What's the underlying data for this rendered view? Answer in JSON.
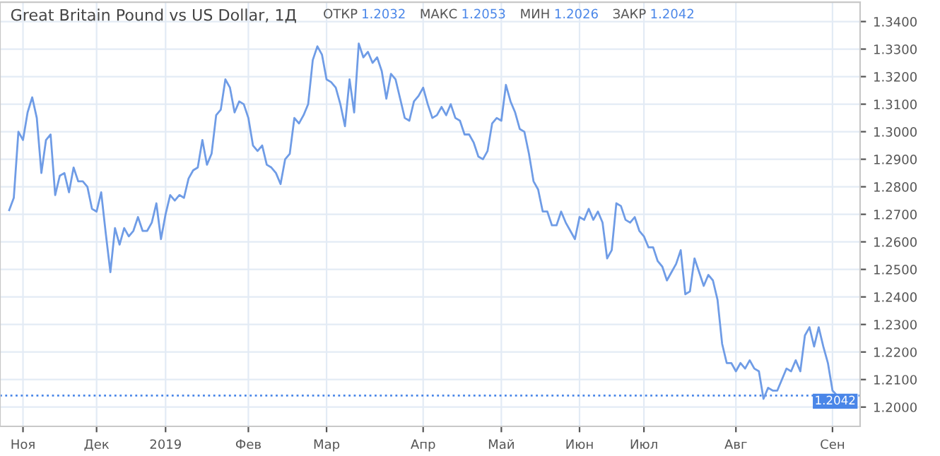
{
  "chart_data": {
    "type": "line",
    "title": "Great Britain Pound vs US Dollar, 1Д",
    "annotations": [
      "ОТКР 1.2032",
      "МАКС 1.2053",
      "МИН 1.2026",
      "ЗАКР 1.2042"
    ],
    "categories": [
      null,
      null,
      null,
      "Ноя",
      null,
      null,
      null,
      null,
      null,
      null,
      null,
      null,
      null,
      null,
      null,
      null,
      null,
      null,
      null,
      "Дек",
      null,
      null,
      null,
      null,
      null,
      null,
      null,
      null,
      null,
      null,
      null,
      null,
      null,
      null,
      "2019",
      null,
      null,
      null,
      null,
      null,
      null,
      null,
      null,
      null,
      null,
      null,
      null,
      null,
      null,
      null,
      null,
      null,
      "Фев",
      null,
      null,
      null,
      null,
      null,
      null,
      null,
      null,
      null,
      null,
      null,
      null,
      null,
      null,
      null,
      null,
      "Мар",
      null,
      null,
      null,
      null,
      null,
      null,
      null,
      null,
      null,
      null,
      null,
      null,
      null,
      null,
      null,
      null,
      null,
      null,
      null,
      null,
      "Апр",
      null,
      null,
      null,
      null,
      null,
      null,
      null,
      null,
      null,
      null,
      null,
      null,
      null,
      null,
      null,
      null,
      "Май",
      null,
      null,
      null,
      null,
      null,
      null,
      null,
      null,
      null,
      null,
      null,
      null,
      null,
      null,
      null,
      null,
      "Июн",
      null,
      null,
      null,
      null,
      null,
      null,
      null,
      null,
      null,
      null,
      null,
      null,
      null,
      "Июл",
      null,
      null,
      null,
      null,
      null,
      null,
      null,
      null,
      null,
      null,
      null,
      null,
      null,
      null,
      null,
      null,
      null,
      null,
      null,
      "Авг",
      null,
      null,
      null,
      null,
      null,
      null,
      null,
      null,
      null,
      null,
      null,
      null,
      null,
      null,
      null,
      null,
      null,
      null,
      null,
      null,
      "Сен",
      null
    ],
    "series": [
      {
        "color": "#6f9ce6",
        "values": [
          1.2715,
          1.276,
          1.3,
          1.297,
          1.307,
          1.3125,
          1.305,
          1.285,
          1.297,
          1.299,
          1.277,
          1.284,
          1.285,
          1.278,
          1.287,
          1.282,
          1.282,
          1.28,
          1.272,
          1.271,
          1.278,
          1.263,
          1.249,
          1.265,
          1.259,
          1.265,
          1.262,
          1.264,
          1.269,
          1.264,
          1.264,
          1.267,
          1.274,
          1.261,
          1.27,
          1.277,
          1.275,
          1.277,
          1.276,
          1.283,
          1.286,
          1.287,
          1.297,
          1.288,
          1.292,
          1.306,
          1.308,
          1.319,
          1.316,
          1.307,
          1.311,
          1.31,
          1.305,
          1.295,
          1.293,
          1.295,
          1.288,
          1.287,
          1.285,
          1.281,
          1.29,
          1.292,
          1.305,
          1.303,
          1.306,
          1.31,
          1.326,
          1.331,
          1.328,
          1.319,
          1.318,
          1.316,
          1.31,
          1.302,
          1.319,
          1.307,
          1.332,
          1.327,
          1.329,
          1.325,
          1.327,
          1.322,
          1.312,
          1.321,
          1.319,
          1.312,
          1.305,
          1.304,
          1.311,
          1.313,
          1.316,
          1.31,
          1.305,
          1.306,
          1.309,
          1.306,
          1.31,
          1.305,
          1.304,
          1.299,
          1.299,
          1.296,
          1.291,
          1.29,
          1.293,
          1.303,
          1.305,
          1.304,
          1.317,
          1.311,
          1.307,
          1.301,
          1.3,
          1.292,
          1.282,
          1.279,
          1.271,
          1.271,
          1.266,
          1.266,
          1.271,
          1.267,
          1.264,
          1.261,
          1.269,
          1.268,
          1.272,
          1.268,
          1.271,
          1.267,
          1.254,
          1.257,
          1.274,
          1.273,
          1.268,
          1.267,
          1.269,
          1.264,
          1.262,
          1.258,
          1.258,
          1.253,
          1.251,
          1.246,
          1.249,
          1.252,
          1.257,
          1.241,
          1.242,
          1.254,
          1.249,
          1.244,
          1.248,
          1.246,
          1.239,
          1.223,
          1.216,
          1.216,
          1.213,
          1.216,
          1.214,
          1.217,
          1.214,
          1.213,
          1.203,
          1.207,
          1.206,
          1.206,
          1.21,
          1.214,
          1.213,
          1.217,
          1.213,
          1.226,
          1.229,
          1.222,
          1.229,
          1.222,
          1.216,
          1.206,
          1.2042
        ]
      }
    ],
    "ylim": [
      1.193,
      1.347
    ],
    "yticks": [
      {
        "value": 1.2,
        "label": "1.2000"
      },
      {
        "value": 1.21,
        "label": "1.2100"
      },
      {
        "value": 1.22,
        "label": "1.2200"
      },
      {
        "value": 1.23,
        "label": "1.2300"
      },
      {
        "value": 1.24,
        "label": "1.2400"
      },
      {
        "value": 1.25,
        "label": "1.2500"
      },
      {
        "value": 1.26,
        "label": "1.2600"
      },
      {
        "value": 1.27,
        "label": "1.2700"
      },
      {
        "value": 1.28,
        "label": "1.2800"
      },
      {
        "value": 1.29,
        "label": "1.2900"
      },
      {
        "value": 1.3,
        "label": "1.3000"
      },
      {
        "value": 1.31,
        "label": "1.3100"
      },
      {
        "value": 1.32,
        "label": "1.3200"
      },
      {
        "value": 1.33,
        "label": "1.3300"
      },
      {
        "value": 1.34,
        "label": "1.3400"
      }
    ],
    "ref_lines": [
      {
        "axis": "y",
        "value": 1.2042,
        "label": "1.2042",
        "color": "#4a86e8",
        "line_style": "dotted"
      }
    ],
    "grid": true,
    "marker": "none",
    "line_style": "solid"
  }
}
